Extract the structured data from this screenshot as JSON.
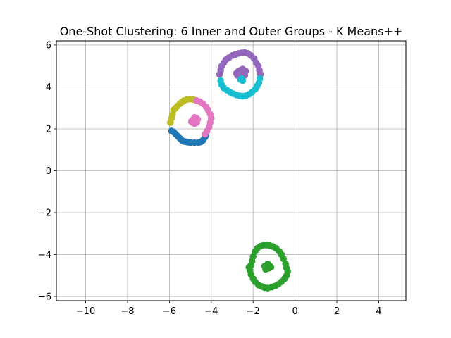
{
  "chart_data": {
    "type": "scatter",
    "title": "One-Shot Clustering: 6 Inner and Outer Groups - K Means++",
    "xlabel": "",
    "ylabel": "",
    "xlim": [
      -11.4,
      5.3
    ],
    "ylim": [
      -6.2,
      6.2
    ],
    "xticks": [
      -10,
      -8,
      -6,
      -4,
      -2,
      0,
      2,
      4
    ],
    "yticks": [
      -6,
      -4,
      -2,
      0,
      2,
      4,
      6
    ],
    "xtick_labels": [
      "−10",
      "−8",
      "−6",
      "−4",
      "−2",
      "0",
      "2",
      "4"
    ],
    "ytick_labels": [
      "−6",
      "−4",
      "−2",
      "0",
      "2",
      "4",
      "6"
    ],
    "grid": true,
    "series": [
      {
        "color": "#1f77b4",
        "points": [
          [
            -5.9,
            1.9
          ],
          [
            -5.8,
            1.85
          ],
          [
            -5.7,
            1.75
          ],
          [
            -5.6,
            1.65
          ],
          [
            -5.5,
            1.55
          ],
          [
            -5.4,
            1.45
          ],
          [
            -5.3,
            1.4
          ],
          [
            -5.2,
            1.38
          ],
          [
            -5.1,
            1.36
          ],
          [
            -5.0,
            1.35
          ],
          [
            -4.8,
            1.34
          ],
          [
            -4.6,
            1.35
          ],
          [
            -4.5,
            1.38
          ],
          [
            -4.4,
            1.45
          ],
          [
            -4.3,
            1.6
          ],
          [
            -4.25,
            1.7
          ]
        ]
      },
      {
        "color": "#bcbd22",
        "points": [
          [
            -5.95,
            2.3
          ],
          [
            -5.9,
            2.5
          ],
          [
            -5.85,
            2.7
          ],
          [
            -5.8,
            2.9
          ],
          [
            -5.7,
            3.0
          ],
          [
            -5.6,
            3.1
          ],
          [
            -5.5,
            3.2
          ],
          [
            -5.4,
            3.28
          ],
          [
            -5.3,
            3.35
          ],
          [
            -5.15,
            3.4
          ],
          [
            -5.0,
            3.42
          ],
          [
            -4.85,
            3.4
          ]
        ]
      },
      {
        "color": "#e377c2",
        "points": [
          [
            -4.7,
            3.35
          ],
          [
            -4.55,
            3.3
          ],
          [
            -4.4,
            3.2
          ],
          [
            -4.25,
            3.05
          ],
          [
            -4.15,
            2.9
          ],
          [
            -4.05,
            2.7
          ],
          [
            -4.0,
            2.5
          ],
          [
            -4.05,
            2.3
          ],
          [
            -4.1,
            2.1
          ],
          [
            -4.2,
            1.9
          ],
          [
            -4.3,
            1.75
          ],
          [
            -4.95,
            2.35
          ],
          [
            -4.85,
            2.45
          ],
          [
            -4.8,
            2.55
          ],
          [
            -4.75,
            2.4
          ],
          [
            -4.7,
            2.3
          ],
          [
            -4.65,
            2.45
          ],
          [
            -4.9,
            2.3
          ],
          [
            -4.8,
            2.25
          ],
          [
            -4.7,
            2.5
          ],
          [
            -4.85,
            2.35
          ]
        ]
      },
      {
        "color": "#9467bd",
        "points": [
          [
            -3.6,
            4.6
          ],
          [
            -3.55,
            4.8
          ],
          [
            -3.5,
            5.0
          ],
          [
            -3.4,
            5.15
          ],
          [
            -3.3,
            5.3
          ],
          [
            -3.15,
            5.4
          ],
          [
            -3.0,
            5.5
          ],
          [
            -2.85,
            5.55
          ],
          [
            -2.7,
            5.6
          ],
          [
            -2.55,
            5.63
          ],
          [
            -2.4,
            5.65
          ],
          [
            -2.25,
            5.6
          ],
          [
            -2.1,
            5.5
          ],
          [
            -1.95,
            5.35
          ],
          [
            -1.85,
            5.15
          ],
          [
            -1.75,
            5.0
          ],
          [
            -1.7,
            4.8
          ],
          [
            -1.65,
            4.6
          ],
          [
            -2.8,
            4.65
          ],
          [
            -2.7,
            4.75
          ],
          [
            -2.6,
            4.8
          ],
          [
            -2.5,
            4.85
          ],
          [
            -2.45,
            4.7
          ],
          [
            -2.55,
            4.6
          ],
          [
            -2.65,
            4.65
          ],
          [
            -2.4,
            4.55
          ],
          [
            -2.35,
            4.75
          ],
          [
            -2.75,
            4.55
          ]
        ]
      },
      {
        "color": "#17becf",
        "points": [
          [
            -3.55,
            4.3
          ],
          [
            -3.5,
            4.1
          ],
          [
            -3.4,
            3.95
          ],
          [
            -3.25,
            3.85
          ],
          [
            -3.1,
            3.75
          ],
          [
            -2.95,
            3.68
          ],
          [
            -2.8,
            3.62
          ],
          [
            -2.65,
            3.58
          ],
          [
            -2.5,
            3.56
          ],
          [
            -2.35,
            3.58
          ],
          [
            -2.2,
            3.65
          ],
          [
            -2.05,
            3.75
          ],
          [
            -1.9,
            3.9
          ],
          [
            -1.8,
            4.05
          ],
          [
            -1.72,
            4.2
          ],
          [
            -1.68,
            4.4
          ],
          [
            -2.6,
            4.35
          ],
          [
            -2.55,
            4.4
          ],
          [
            -2.5,
            4.3
          ]
        ]
      },
      {
        "color": "#2ca02c",
        "points": [
          [
            -2.1,
            -4.5
          ],
          [
            -2.05,
            -4.3
          ],
          [
            -2.0,
            -4.1
          ],
          [
            -1.9,
            -3.85
          ],
          [
            -1.8,
            -3.7
          ],
          [
            -1.65,
            -3.6
          ],
          [
            -1.5,
            -3.55
          ],
          [
            -1.35,
            -3.55
          ],
          [
            -1.2,
            -3.57
          ],
          [
            -1.05,
            -3.62
          ],
          [
            -0.9,
            -3.7
          ],
          [
            -0.75,
            -3.85
          ],
          [
            -0.65,
            -4.0
          ],
          [
            -0.55,
            -4.2
          ],
          [
            -0.45,
            -4.45
          ],
          [
            -0.4,
            -4.65
          ],
          [
            -0.35,
            -4.8
          ],
          [
            -0.4,
            -5.0
          ],
          [
            -0.5,
            -5.15
          ],
          [
            -0.65,
            -5.3
          ],
          [
            -0.8,
            -5.42
          ],
          [
            -0.95,
            -5.5
          ],
          [
            -1.1,
            -5.55
          ],
          [
            -1.3,
            -5.6
          ],
          [
            -1.45,
            -5.58
          ],
          [
            -1.6,
            -5.52
          ],
          [
            -1.75,
            -5.45
          ],
          [
            -1.9,
            -5.3
          ],
          [
            -2.0,
            -5.15
          ],
          [
            -2.1,
            -4.95
          ],
          [
            -2.15,
            -4.75
          ],
          [
            -2.2,
            -4.6
          ],
          [
            -1.45,
            -4.55
          ],
          [
            -1.35,
            -4.6
          ],
          [
            -1.3,
            -4.5
          ],
          [
            -1.25,
            -4.65
          ],
          [
            -1.2,
            -4.55
          ],
          [
            -1.4,
            -4.7
          ],
          [
            -1.15,
            -4.6
          ],
          [
            -1.3,
            -4.45
          ]
        ]
      }
    ]
  }
}
